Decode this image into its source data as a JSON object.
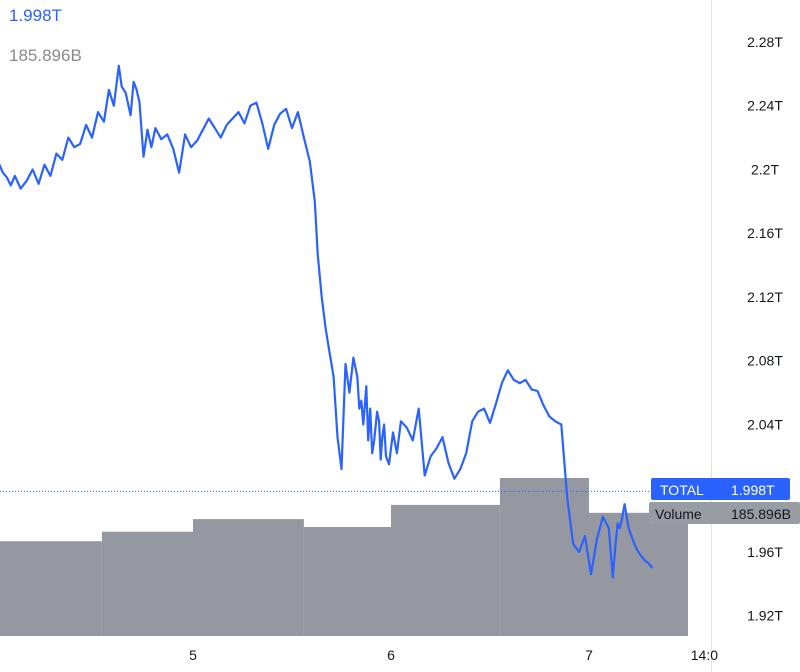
{
  "header": {
    "price_value": "1.998T",
    "volume_value": "185.896B"
  },
  "colors": {
    "line": "#2962ff",
    "volume": "#9598a1",
    "axis_text": "#131722",
    "price_tag_bg": "#2962ff",
    "volume_tag_bg": "#9a9ca3",
    "divider": "#e0e3eb"
  },
  "legend": {
    "price_label": "TOTAL",
    "price_value": "1.998T",
    "volume_label": "Volume",
    "volume_value": "185.896B"
  },
  "chart_data": {
    "type": "line",
    "title": "",
    "xlabel": "",
    "ylabel": "",
    "y_ticks": [
      "2.28T",
      "2.24T",
      "2.2T",
      "2.16T",
      "2.12T",
      "2.08T",
      "2.04T",
      "1.96T",
      "1.92T"
    ],
    "x_ticks": [
      {
        "label": "5",
        "day": 5
      },
      {
        "label": "6",
        "day": 6
      },
      {
        "label": "7",
        "day": 7
      },
      {
        "label": "14:0",
        "day": 7.583
      }
    ],
    "ylim": [
      1.9,
      2.295
    ],
    "xlim": [
      4.015,
      7.61
    ],
    "current_value": 1.998,
    "grid": false,
    "series": [
      {
        "type": "line",
        "x": [
          4.015,
          4.04,
          4.06,
          4.08,
          4.1,
          4.13,
          4.16,
          4.19,
          4.22,
          4.25,
          4.28,
          4.31,
          4.34,
          4.37,
          4.4,
          4.43,
          4.46,
          4.49,
          4.52,
          4.55,
          4.575,
          4.6,
          4.625,
          4.64,
          4.66,
          4.685,
          4.7,
          4.715,
          4.73,
          4.75,
          4.77,
          4.79,
          4.81,
          4.84,
          4.87,
          4.9,
          4.93,
          4.96,
          4.99,
          5.02,
          5.05,
          5.08,
          5.11,
          5.14,
          5.17,
          5.2,
          5.23,
          5.26,
          5.29,
          5.32,
          5.35,
          5.38,
          5.41,
          5.44,
          5.47,
          5.5,
          5.53,
          5.56,
          5.59,
          5.615,
          5.63,
          5.65,
          5.67,
          5.69,
          5.71,
          5.73,
          5.75,
          5.77,
          5.79,
          5.81,
          5.83,
          5.84,
          5.85,
          5.86,
          5.875,
          5.885,
          5.895,
          5.905,
          5.915,
          5.93,
          5.94,
          5.948,
          5.956,
          5.965,
          5.975,
          5.99,
          6.01,
          6.03,
          6.05,
          6.08,
          6.11,
          6.14,
          6.17,
          6.2,
          6.23,
          6.26,
          6.29,
          6.32,
          6.35,
          6.38,
          6.41,
          6.44,
          6.47,
          6.5,
          6.53,
          6.56,
          6.59,
          6.62,
          6.65,
          6.68,
          6.71,
          6.74,
          6.77,
          6.8,
          6.83,
          6.86,
          6.89,
          6.92,
          6.95,
          6.98,
          7.01,
          7.04,
          7.07,
          7.1,
          7.12,
          7.135,
          7.145,
          7.155,
          7.165,
          7.18,
          7.2,
          7.22,
          7.24,
          7.26,
          7.28,
          7.3,
          7.32
        ],
        "y": [
          2.205,
          2.198,
          2.195,
          2.19,
          2.196,
          2.188,
          2.193,
          2.2,
          2.191,
          2.203,
          2.196,
          2.21,
          2.206,
          2.22,
          2.214,
          2.216,
          2.228,
          2.22,
          2.236,
          2.23,
          2.25,
          2.24,
          2.265,
          2.252,
          2.248,
          2.234,
          2.255,
          2.25,
          2.242,
          2.208,
          2.225,
          2.214,
          2.226,
          2.219,
          2.222,
          2.213,
          2.198,
          2.222,
          2.214,
          2.218,
          2.225,
          2.232,
          2.226,
          2.22,
          2.228,
          2.232,
          2.236,
          2.229,
          2.24,
          2.242,
          2.229,
          2.213,
          2.228,
          2.235,
          2.238,
          2.226,
          2.236,
          2.22,
          2.205,
          2.18,
          2.147,
          2.12,
          2.1,
          2.085,
          2.07,
          2.032,
          2.012,
          2.078,
          2.06,
          2.082,
          2.07,
          2.05,
          2.055,
          2.04,
          2.064,
          2.03,
          2.05,
          2.022,
          2.03,
          2.048,
          2.042,
          2.018,
          2.032,
          2.04,
          2.02,
          2.015,
          2.035,
          2.022,
          2.042,
          2.038,
          2.03,
          2.05,
          2.008,
          2.02,
          2.025,
          2.032,
          2.016,
          2.006,
          2.012,
          2.022,
          2.042,
          2.048,
          2.05,
          2.041,
          2.053,
          2.066,
          2.074,
          2.068,
          2.066,
          2.068,
          2.062,
          2.061,
          2.052,
          2.045,
          2.042,
          2.04,
          1.994,
          1.965,
          1.96,
          1.97,
          1.946,
          1.968,
          1.982,
          1.975,
          1.944,
          1.966,
          1.978,
          1.975,
          1.98,
          1.99,
          1.975,
          1.968,
          1.962,
          1.958,
          1.955,
          1.953,
          1.95
        ]
      },
      {
        "name": "Volume",
        "type": "bar",
        "bars": [
          {
            "x_start": 4.015,
            "x_end": 4.54,
            "value": 0.6
          },
          {
            "x_start": 4.54,
            "x_end": 5.0,
            "value": 0.66
          },
          {
            "x_start": 5.0,
            "x_end": 5.56,
            "value": 0.74
          },
          {
            "x_start": 5.56,
            "x_end": 6.0,
            "value": 0.69
          },
          {
            "x_start": 6.0,
            "x_end": 6.55,
            "value": 0.83
          },
          {
            "x_start": 6.55,
            "x_end": 7.0,
            "value": 1.0
          },
          {
            "x_start": 7.0,
            "x_end": 7.5,
            "value": 0.78
          }
        ]
      }
    ]
  }
}
